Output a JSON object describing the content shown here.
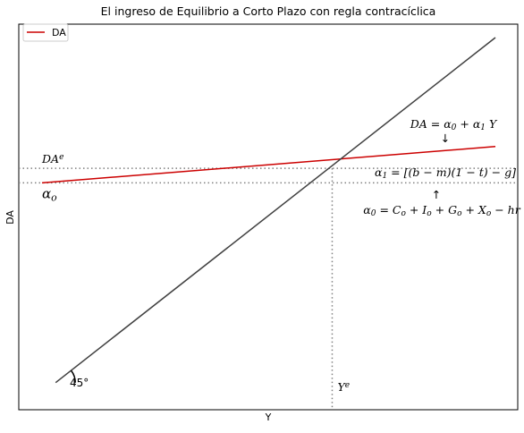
{
  "chart_data": {
    "type": "line",
    "title": "El ingreso de Equilibrio a Corto Plazo con regla contracíclica",
    "xlabel": "Y",
    "ylabel": "DA",
    "xlim": [
      0,
      100
    ],
    "ylim": [
      0,
      100
    ],
    "grid": false,
    "xticks": [],
    "yticks": [],
    "legend": {
      "position": "top-left",
      "entries": [
        "DA"
      ]
    },
    "series": [
      {
        "name": "DA",
        "color": "#cc0000",
        "x": [
          0,
          100
        ],
        "y": [
          60,
          70
        ]
      },
      {
        "name": "",
        "color": "#404040",
        "x": [
          3,
          100
        ],
        "y": [
          5,
          100
        ]
      }
    ],
    "reference_lines": {
      "alpha_level": 60,
      "equilibrium_y": 64,
      "equilibrium_x": 64,
      "color": "#808080"
    },
    "annotations": {
      "da_e": "DA^e",
      "alpha_o": "α_o",
      "y_e": "Y^e",
      "angle": "45°",
      "da_eq": "DA = α_0 + α_1 Y",
      "arrow_down": "↓",
      "alpha1_eq": "α_1 = [(b − m)(1 − t) − g]",
      "arrow_up": "↑",
      "alpha0_eq": "α_0 = C_o + I_o + G_o + X_o − hr"
    }
  }
}
